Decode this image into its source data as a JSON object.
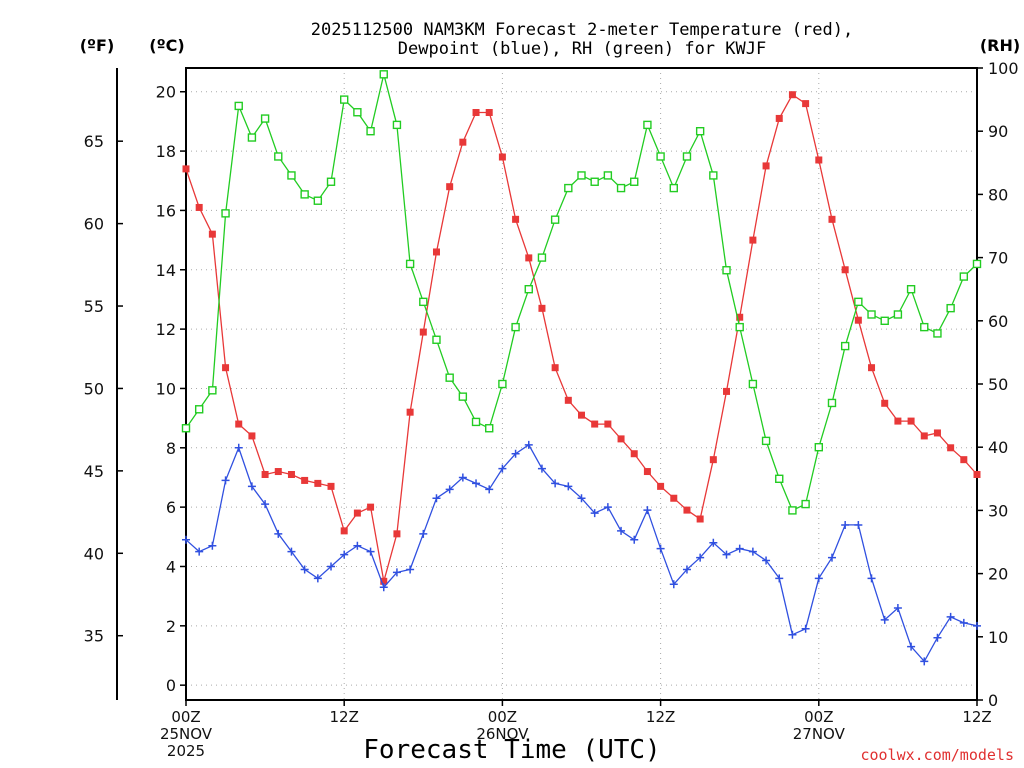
{
  "chart_data": {
    "type": "line",
    "title_line1": "2025112500 NAM3KM Forecast 2-meter Temperature (red),",
    "title_line2": "Dewpoint (blue), RH (green) for KWJF",
    "unit_f": "(ºF)",
    "unit_c": "(ºC)",
    "unit_rh": "(RH)",
    "xlabel": "Forecast Time (UTC)",
    "credit": "coolwx.com/models",
    "hours": [
      0,
      1,
      2,
      3,
      4,
      5,
      6,
      7,
      8,
      9,
      10,
      11,
      12,
      13,
      14,
      15,
      16,
      17,
      18,
      19,
      20,
      21,
      22,
      23,
      24,
      25,
      26,
      27,
      28,
      29,
      30,
      31,
      32,
      33,
      34,
      35,
      36,
      37,
      38,
      39,
      40,
      41,
      42,
      43,
      44,
      45,
      46,
      47,
      48,
      49,
      50,
      51,
      52,
      53,
      54,
      55,
      56,
      57,
      58,
      59,
      60
    ],
    "x_ticks": [
      {
        "hour": 0,
        "lines": [
          "00Z",
          "25NOV",
          "2025"
        ]
      },
      {
        "hour": 12,
        "lines": [
          "12Z"
        ]
      },
      {
        "hour": 24,
        "lines": [
          "00Z",
          "26NOV"
        ]
      },
      {
        "hour": 36,
        "lines": [
          "12Z"
        ]
      },
      {
        "hour": 48,
        "lines": [
          "00Z",
          "27NOV"
        ]
      },
      {
        "hour": 60,
        "lines": [
          "12Z"
        ]
      }
    ],
    "xlim": [
      0,
      60
    ],
    "ylim_c": [
      -0.5,
      20.8
    ],
    "ylim_rh": [
      0,
      100
    ],
    "celsius_ticks": [
      "0",
      "2",
      "4",
      "6",
      "8",
      "10",
      "12",
      "14",
      "16",
      "18",
      "20"
    ],
    "fahrenheit_ticks": [
      "35",
      "40",
      "45",
      "50",
      "55",
      "60",
      "65"
    ],
    "rh_ticks": [
      "0",
      "10",
      "20",
      "30",
      "40",
      "50",
      "60",
      "70",
      "80",
      "90",
      "100"
    ],
    "grid": true,
    "series": [
      {
        "name": "Temperature",
        "color": "#e83838",
        "marker": "filled-square",
        "axis": "celsius",
        "values": [
          17.4,
          16.1,
          15.2,
          10.7,
          8.8,
          8.4,
          7.1,
          7.2,
          7.1,
          6.9,
          6.8,
          6.7,
          5.2,
          5.8,
          6.0,
          3.5,
          5.1,
          9.2,
          11.9,
          14.6,
          16.8,
          18.3,
          19.3,
          19.3,
          17.8,
          15.7,
          14.4,
          12.7,
          10.7,
          9.6,
          9.1,
          8.8,
          8.8,
          8.3,
          7.8,
          7.2,
          6.7,
          6.3,
          5.9,
          5.6,
          7.6,
          9.9,
          12.4,
          15.0,
          17.5,
          19.1,
          19.9,
          19.6,
          17.7,
          15.7,
          14.0,
          12.3,
          10.7,
          9.5,
          8.9,
          8.9,
          8.4,
          8.5,
          8.0,
          7.6,
          7.1
        ]
      },
      {
        "name": "Dewpoint",
        "color": "#3050e0",
        "marker": "plus",
        "axis": "celsius",
        "values": [
          4.9,
          4.5,
          4.7,
          6.9,
          8.0,
          6.7,
          6.1,
          5.1,
          4.5,
          3.9,
          3.6,
          4.0,
          4.4,
          4.7,
          4.5,
          3.3,
          3.8,
          3.9,
          5.1,
          6.3,
          6.6,
          7.0,
          6.8,
          6.6,
          7.3,
          7.8,
          8.1,
          7.3,
          6.8,
          6.7,
          6.3,
          5.8,
          6.0,
          5.2,
          4.9,
          5.9,
          4.6,
          3.4,
          3.9,
          4.3,
          4.8,
          4.4,
          4.6,
          4.5,
          4.2,
          3.6,
          1.7,
          1.9,
          3.6,
          4.3,
          5.4,
          5.4,
          3.6,
          2.2,
          2.6,
          1.3,
          0.8,
          1.6,
          2.3,
          2.1,
          2.0
        ]
      },
      {
        "name": "RH",
        "color": "#22cc22",
        "marker": "open-square",
        "axis": "rh",
        "values": [
          43,
          46,
          49,
          77,
          94,
          89,
          92,
          86,
          83,
          80,
          79,
          82,
          95,
          93,
          90,
          99,
          91,
          69,
          63,
          57,
          51,
          48,
          44,
          43,
          50,
          59,
          65,
          70,
          76,
          81,
          83,
          82,
          83,
          81,
          82,
          91,
          86,
          81,
          86,
          90,
          83,
          68,
          59,
          50,
          41,
          35,
          30,
          31,
          40,
          47,
          56,
          63,
          61,
          60,
          61,
          65,
          59,
          58,
          62,
          67,
          69
        ]
      }
    ]
  }
}
